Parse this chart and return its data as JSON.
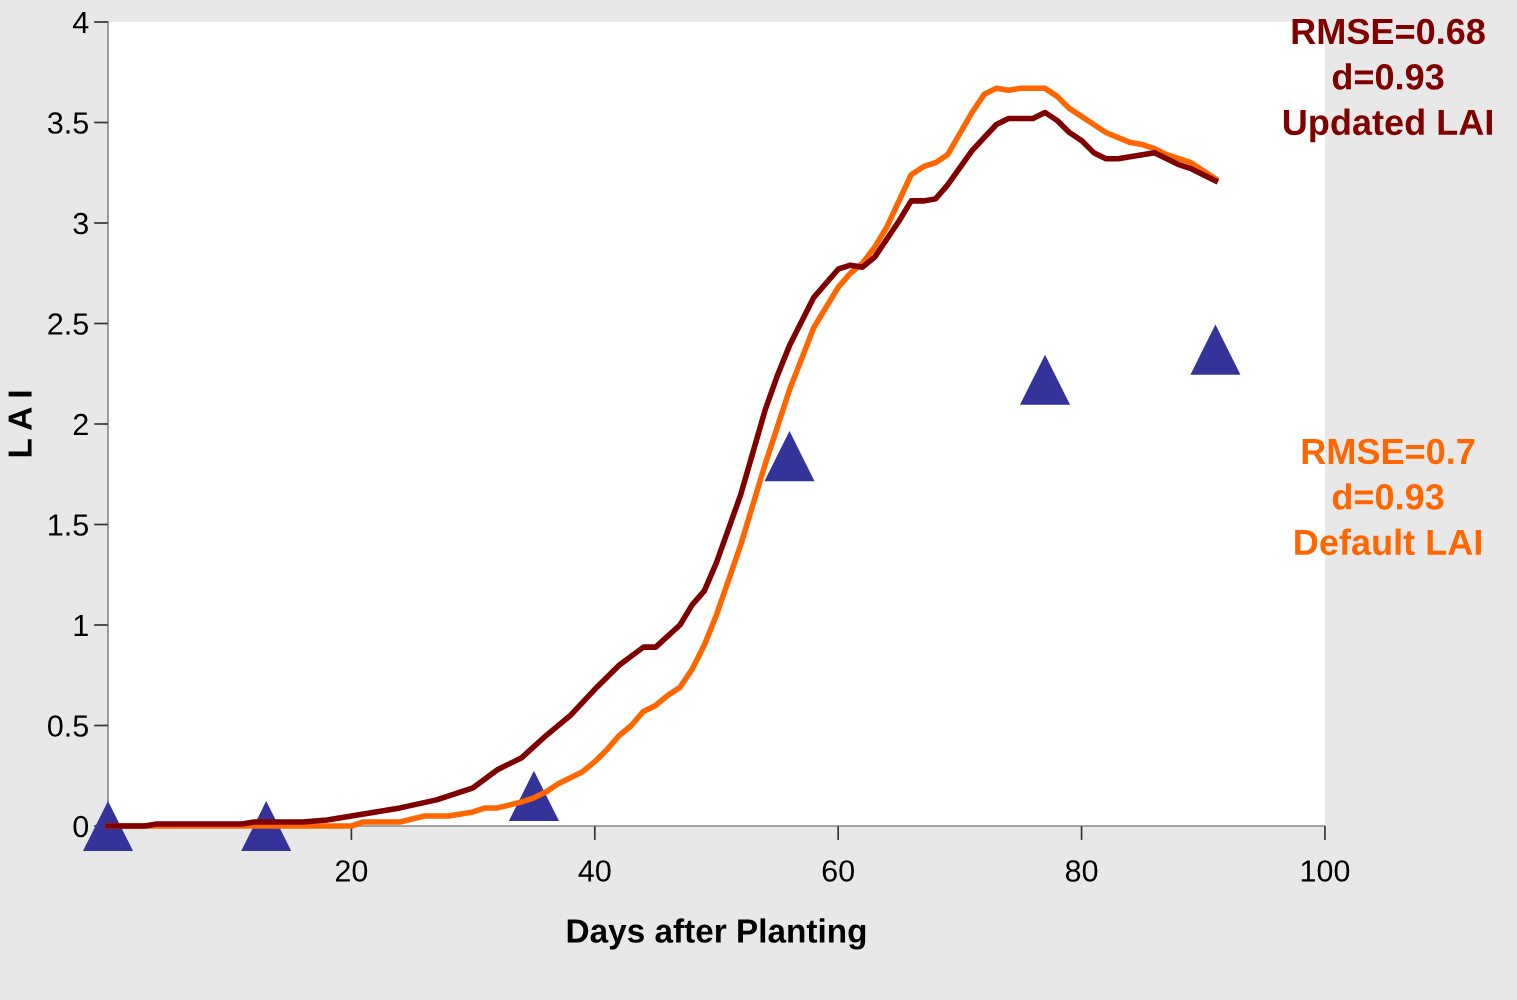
{
  "chart_data": {
    "type": "line",
    "xlabel": "Days after Planting",
    "ylabel": "L A I",
    "xlim": [
      0,
      100
    ],
    "xticks": [
      20,
      40,
      60,
      80,
      100
    ],
    "ylim": [
      0,
      4
    ],
    "yticks": [
      0,
      0.5,
      1,
      1.5,
      2,
      2.5,
      3,
      3.5,
      4
    ],
    "grid": false,
    "legend": false,
    "series": [
      {
        "color": "#ff6600",
        "x": [
          0,
          20,
          21,
          24,
          26,
          28,
          30,
          31,
          32,
          34,
          35,
          36,
          37,
          38,
          39,
          40,
          41,
          42,
          43,
          44,
          45,
          46,
          47,
          48,
          49,
          50,
          52,
          54,
          56,
          58,
          60,
          61,
          62,
          63,
          64,
          66,
          67,
          68,
          69,
          71,
          72,
          73,
          74,
          75,
          77,
          78,
          79,
          81,
          82,
          84,
          85,
          86,
          87,
          88,
          89,
          91
        ],
        "values": [
          0,
          0,
          0.02,
          0.02,
          0.05,
          0.05,
          0.07,
          0.09,
          0.09,
          0.12,
          0.14,
          0.17,
          0.21,
          0.24,
          0.27,
          0.32,
          0.38,
          0.45,
          0.5,
          0.57,
          0.6,
          0.65,
          0.69,
          0.78,
          0.9,
          1.05,
          1.4,
          1.8,
          2.17,
          2.48,
          2.68,
          2.75,
          2.8,
          2.88,
          2.98,
          3.24,
          3.28,
          3.3,
          3.34,
          3.55,
          3.64,
          3.67,
          3.66,
          3.67,
          3.67,
          3.63,
          3.57,
          3.49,
          3.45,
          3.4,
          3.39,
          3.37,
          3.34,
          3.32,
          3.3,
          3.22
        ]
      },
      {
        "color": "#800000",
        "x": [
          0,
          3,
          4,
          11,
          12,
          16,
          18,
          20,
          22,
          24,
          27,
          30,
          32,
          34,
          36,
          38,
          40,
          42,
          44,
          45,
          47,
          48,
          49,
          50,
          52,
          54,
          55,
          56,
          58,
          60,
          61,
          62,
          63,
          65,
          66,
          67,
          68,
          69,
          71,
          73,
          74,
          76,
          77,
          78,
          79,
          80,
          81,
          82,
          83,
          86,
          87,
          88,
          89,
          91
        ],
        "values": [
          0,
          0,
          0.01,
          0.01,
          0.02,
          0.02,
          0.03,
          0.05,
          0.07,
          0.09,
          0.13,
          0.19,
          0.28,
          0.34,
          0.45,
          0.55,
          0.68,
          0.8,
          0.89,
          0.89,
          1.0,
          1.1,
          1.17,
          1.31,
          1.65,
          2.07,
          2.24,
          2.39,
          2.63,
          2.77,
          2.79,
          2.78,
          2.83,
          3.01,
          3.11,
          3.11,
          3.12,
          3.19,
          3.36,
          3.49,
          3.52,
          3.52,
          3.55,
          3.51,
          3.45,
          3.41,
          3.35,
          3.32,
          3.32,
          3.35,
          3.32,
          3.29,
          3.27,
          3.21
        ]
      },
      {
        "type": "scatter",
        "marker": "triangle",
        "color": "#333399",
        "x": [
          0,
          13,
          35,
          56,
          77,
          91
        ],
        "values": [
          0,
          0,
          0.15,
          1.84,
          2.22,
          2.37
        ]
      }
    ],
    "annotations": [
      "RMSE=0.7\nd=0.93\nDefault LAI",
      "RMSE=0.68\nd=0.93\nUpdated LAI"
    ]
  }
}
